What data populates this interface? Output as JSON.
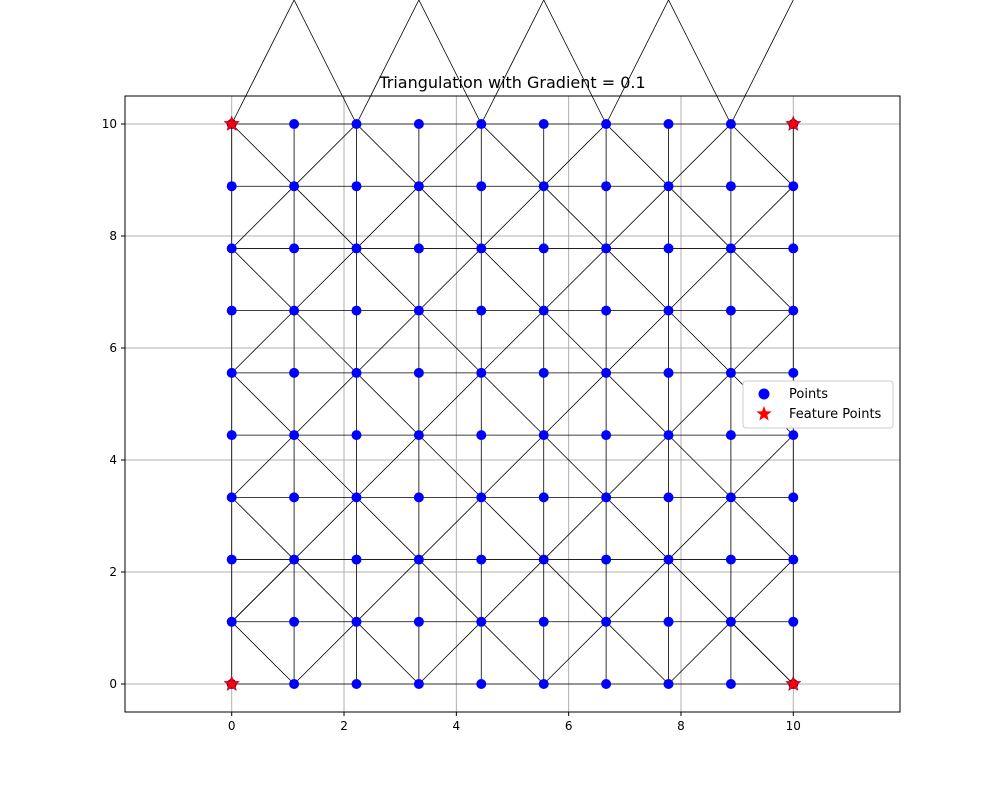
{
  "chart_data": {
    "type": "scatter",
    "title": "Triangulation with Gradient = 0.1",
    "xlabel": "",
    "ylabel": "",
    "xlim": [
      -1.9,
      11.9
    ],
    "ylim": [
      -0.5,
      10.5
    ],
    "xticks": [
      0,
      2,
      4,
      6,
      8,
      10
    ],
    "yticks": [
      0,
      2,
      4,
      6,
      8,
      10
    ],
    "grid": true,
    "legend_position": "right",
    "grid_x": [
      0,
      1.111,
      2.222,
      3.333,
      4.444,
      5.556,
      6.667,
      7.778,
      8.889,
      10
    ],
    "grid_y": [
      0,
      1.111,
      2.222,
      3.333,
      4.444,
      5.556,
      6.667,
      7.778,
      8.889,
      10
    ],
    "series": [
      {
        "name": "Points",
        "color": "#0000ff",
        "marker": "circle",
        "points": [
          [
            0,
            0
          ],
          [
            1.111,
            0
          ],
          [
            2.222,
            0
          ],
          [
            3.333,
            0
          ],
          [
            4.444,
            0
          ],
          [
            5.556,
            0
          ],
          [
            6.667,
            0
          ],
          [
            7.778,
            0
          ],
          [
            8.889,
            0
          ],
          [
            10,
            0
          ],
          [
            0,
            1.111
          ],
          [
            1.111,
            1.111
          ],
          [
            2.222,
            1.111
          ],
          [
            3.333,
            1.111
          ],
          [
            4.444,
            1.111
          ],
          [
            5.556,
            1.111
          ],
          [
            6.667,
            1.111
          ],
          [
            7.778,
            1.111
          ],
          [
            8.889,
            1.111
          ],
          [
            10,
            1.111
          ],
          [
            0,
            2.222
          ],
          [
            1.111,
            2.222
          ],
          [
            2.222,
            2.222
          ],
          [
            3.333,
            2.222
          ],
          [
            4.444,
            2.222
          ],
          [
            5.556,
            2.222
          ],
          [
            6.667,
            2.222
          ],
          [
            7.778,
            2.222
          ],
          [
            8.889,
            2.222
          ],
          [
            10,
            2.222
          ],
          [
            0,
            3.333
          ],
          [
            1.111,
            3.333
          ],
          [
            2.222,
            3.333
          ],
          [
            3.333,
            3.333
          ],
          [
            4.444,
            3.333
          ],
          [
            5.556,
            3.333
          ],
          [
            6.667,
            3.333
          ],
          [
            7.778,
            3.333
          ],
          [
            8.889,
            3.333
          ],
          [
            10,
            3.333
          ],
          [
            0,
            4.444
          ],
          [
            1.111,
            4.444
          ],
          [
            2.222,
            4.444
          ],
          [
            3.333,
            4.444
          ],
          [
            4.444,
            4.444
          ],
          [
            5.556,
            4.444
          ],
          [
            6.667,
            4.444
          ],
          [
            7.778,
            4.444
          ],
          [
            8.889,
            4.444
          ],
          [
            10,
            4.444
          ],
          [
            0,
            5.556
          ],
          [
            1.111,
            5.556
          ],
          [
            2.222,
            5.556
          ],
          [
            3.333,
            5.556
          ],
          [
            4.444,
            5.556
          ],
          [
            5.556,
            5.556
          ],
          [
            6.667,
            5.556
          ],
          [
            7.778,
            5.556
          ],
          [
            8.889,
            5.556
          ],
          [
            10,
            5.556
          ],
          [
            0,
            6.667
          ],
          [
            1.111,
            6.667
          ],
          [
            2.222,
            6.667
          ],
          [
            3.333,
            6.667
          ],
          [
            4.444,
            6.667
          ],
          [
            5.556,
            6.667
          ],
          [
            6.667,
            6.667
          ],
          [
            7.778,
            6.667
          ],
          [
            8.889,
            6.667
          ],
          [
            10,
            6.667
          ],
          [
            0,
            7.778
          ],
          [
            1.111,
            7.778
          ],
          [
            2.222,
            7.778
          ],
          [
            3.333,
            7.778
          ],
          [
            4.444,
            7.778
          ],
          [
            5.556,
            7.778
          ],
          [
            6.667,
            7.778
          ],
          [
            7.778,
            7.778
          ],
          [
            8.889,
            7.778
          ],
          [
            10,
            7.778
          ],
          [
            0,
            8.889
          ],
          [
            1.111,
            8.889
          ],
          [
            2.222,
            8.889
          ],
          [
            3.333,
            8.889
          ],
          [
            4.444,
            8.889
          ],
          [
            5.556,
            8.889
          ],
          [
            6.667,
            8.889
          ],
          [
            7.778,
            8.889
          ],
          [
            8.889,
            8.889
          ],
          [
            10,
            8.889
          ],
          [
            0,
            10
          ],
          [
            1.111,
            10
          ],
          [
            2.222,
            10
          ],
          [
            3.333,
            10
          ],
          [
            4.444,
            10
          ],
          [
            5.556,
            10
          ],
          [
            6.667,
            10
          ],
          [
            7.778,
            10
          ],
          [
            8.889,
            10
          ],
          [
            10,
            10
          ]
        ]
      },
      {
        "name": "Feature Points",
        "color": "#ff0000",
        "marker": "star",
        "points": [
          [
            0,
            0
          ],
          [
            10,
            0
          ],
          [
            0,
            10
          ],
          [
            10,
            10
          ]
        ]
      }
    ],
    "triangulation": {
      "color": "#000000",
      "diagonals": [
        [
          [
            0,
            1
          ],
          [
            1,
            0
          ]
        ],
        [
          [
            1,
            0
          ],
          [
            2,
            1
          ]
        ],
        [
          [
            2,
            1
          ],
          [
            3,
            0
          ]
        ],
        [
          [
            3,
            0
          ],
          [
            4,
            1
          ]
        ],
        [
          [
            4,
            1
          ],
          [
            5,
            0
          ]
        ],
        [
          [
            5,
            0
          ],
          [
            6,
            1
          ]
        ],
        [
          [
            6,
            1
          ],
          [
            7,
            0
          ]
        ],
        [
          [
            7,
            0
          ],
          [
            8,
            1
          ]
        ],
        [
          [
            8,
            1
          ],
          [
            9,
            0
          ]
        ],
        [
          [
            0,
            1
          ],
          [
            1,
            2
          ]
        ],
        [
          [
            1,
            2
          ],
          [
            2,
            1
          ]
        ],
        [
          [
            2,
            1
          ],
          [
            3,
            2
          ]
        ],
        [
          [
            3,
            2
          ],
          [
            4,
            1
          ]
        ],
        [
          [
            4,
            1
          ],
          [
            5,
            2
          ]
        ],
        [
          [
            5,
            2
          ],
          [
            6,
            1
          ]
        ],
        [
          [
            6,
            1
          ],
          [
            7,
            2
          ]
        ],
        [
          [
            7,
            2
          ],
          [
            8,
            1
          ]
        ],
        [
          [
            8,
            1
          ],
          [
            9,
            2
          ]
        ],
        [
          [
            0,
            3
          ],
          [
            1,
            2
          ]
        ],
        [
          [
            1,
            2
          ],
          [
            2,
            3
          ]
        ],
        [
          [
            2,
            3
          ],
          [
            3,
            2
          ]
        ],
        [
          [
            3,
            2
          ],
          [
            4,
            3
          ]
        ],
        [
          [
            4,
            3
          ],
          [
            5,
            2
          ]
        ],
        [
          [
            5,
            2
          ],
          [
            6,
            3
          ]
        ],
        [
          [
            6,
            3
          ],
          [
            7,
            2
          ]
        ],
        [
          [
            7,
            2
          ],
          [
            8,
            3
          ]
        ],
        [
          [
            8,
            3
          ],
          [
            9,
            2
          ]
        ],
        [
          [
            0,
            3
          ],
          [
            1,
            4
          ]
        ],
        [
          [
            1,
            4
          ],
          [
            2,
            3
          ]
        ],
        [
          [
            2,
            3
          ],
          [
            3,
            4
          ]
        ],
        [
          [
            3,
            4
          ],
          [
            4,
            3
          ]
        ],
        [
          [
            4,
            3
          ],
          [
            5,
            4
          ]
        ],
        [
          [
            5,
            4
          ],
          [
            6,
            3
          ]
        ],
        [
          [
            6,
            3
          ],
          [
            7,
            4
          ]
        ],
        [
          [
            7,
            4
          ],
          [
            8,
            3
          ]
        ],
        [
          [
            8,
            3
          ],
          [
            9,
            4
          ]
        ],
        [
          [
            0,
            5
          ],
          [
            1,
            4
          ]
        ],
        [
          [
            1,
            4
          ],
          [
            2,
            5
          ]
        ],
        [
          [
            2,
            5
          ],
          [
            3,
            4
          ]
        ],
        [
          [
            3,
            4
          ],
          [
            4,
            5
          ]
        ],
        [
          [
            4,
            5
          ],
          [
            5,
            4
          ]
        ],
        [
          [
            5,
            4
          ],
          [
            6,
            5
          ]
        ],
        [
          [
            6,
            5
          ],
          [
            7,
            4
          ]
        ],
        [
          [
            7,
            4
          ],
          [
            8,
            5
          ]
        ],
        [
          [
            8,
            5
          ],
          [
            9,
            4
          ]
        ],
        [
          [
            0,
            5
          ],
          [
            1,
            6
          ]
        ],
        [
          [
            1,
            6
          ],
          [
            2,
            5
          ]
        ],
        [
          [
            2,
            5
          ],
          [
            3,
            6
          ]
        ],
        [
          [
            3,
            6
          ],
          [
            4,
            5
          ]
        ],
        [
          [
            4,
            5
          ],
          [
            5,
            6
          ]
        ],
        [
          [
            5,
            6
          ],
          [
            6,
            5
          ]
        ],
        [
          [
            6,
            5
          ],
          [
            7,
            6
          ]
        ],
        [
          [
            7,
            6
          ],
          [
            8,
            5
          ]
        ],
        [
          [
            8,
            5
          ],
          [
            9,
            6
          ]
        ],
        [
          [
            0,
            7
          ],
          [
            1,
            6
          ]
        ],
        [
          [
            1,
            6
          ],
          [
            2,
            7
          ]
        ],
        [
          [
            2,
            7
          ],
          [
            3,
            6
          ]
        ],
        [
          [
            3,
            6
          ],
          [
            4,
            7
          ]
        ],
        [
          [
            4,
            7
          ],
          [
            5,
            6
          ]
        ],
        [
          [
            5,
            6
          ],
          [
            6,
            7
          ]
        ],
        [
          [
            6,
            7
          ],
          [
            7,
            6
          ]
        ],
        [
          [
            7,
            6
          ],
          [
            8,
            7
          ]
        ],
        [
          [
            8,
            7
          ],
          [
            9,
            6
          ]
        ],
        [
          [
            0,
            7
          ],
          [
            1,
            8
          ]
        ],
        [
          [
            1,
            8
          ],
          [
            2,
            7
          ]
        ],
        [
          [
            2,
            7
          ],
          [
            3,
            8
          ]
        ],
        [
          [
            3,
            8
          ],
          [
            4,
            7
          ]
        ],
        [
          [
            4,
            7
          ],
          [
            5,
            8
          ]
        ],
        [
          [
            5,
            8
          ],
          [
            6,
            7
          ]
        ],
        [
          [
            6,
            7
          ],
          [
            7,
            8
          ]
        ],
        [
          [
            7,
            8
          ],
          [
            8,
            7
          ]
        ],
        [
          [
            8,
            7
          ],
          [
            9,
            8
          ]
        ],
        [
          [
            0,
            9
          ],
          [
            1,
            8
          ]
        ],
        [
          [
            1,
            8
          ],
          [
            2,
            9
          ]
        ],
        [
          [
            2,
            9
          ],
          [
            3,
            8
          ]
        ],
        [
          [
            3,
            8
          ],
          [
            4,
            9
          ]
        ],
        [
          [
            4,
            9
          ],
          [
            5,
            8
          ]
        ],
        [
          [
            5,
            8
          ],
          [
            6,
            9
          ]
        ],
        [
          [
            6,
            9
          ],
          [
            7,
            8
          ]
        ],
        [
          [
            7,
            8
          ],
          [
            8,
            9
          ]
        ],
        [
          [
            8,
            9
          ],
          [
            9,
            8
          ]
        ],
        [
          [
            0,
            9
          ],
          [
            1,
            10
          ]
        ],
        [
          [
            1,
            10
          ],
          [
            2,
            9
          ]
        ],
        [
          [
            2,
            9
          ],
          [
            3,
            10
          ]
        ],
        [
          [
            3,
            10
          ],
          [
            4,
            9
          ]
        ],
        [
          [
            4,
            9
          ],
          [
            5,
            10
          ]
        ],
        [
          [
            5,
            10
          ],
          [
            6,
            9
          ]
        ],
        [
          [
            6,
            9
          ],
          [
            7,
            10
          ]
        ],
        [
          [
            7,
            10
          ],
          [
            8,
            9
          ]
        ],
        [
          [
            8,
            9
          ],
          [
            9,
            10
          ]
        ],
        [
          [
            0,
            1
          ],
          [
            1,
            2
          ]
        ],
        [
          [
            8,
            1
          ],
          [
            9,
            0
          ]
        ]
      ]
    },
    "legend": [
      {
        "label": "Points",
        "marker": "circle",
        "color": "#0000ff"
      },
      {
        "label": "Feature Points",
        "marker": "star",
        "color": "#ff0000"
      }
    ]
  }
}
